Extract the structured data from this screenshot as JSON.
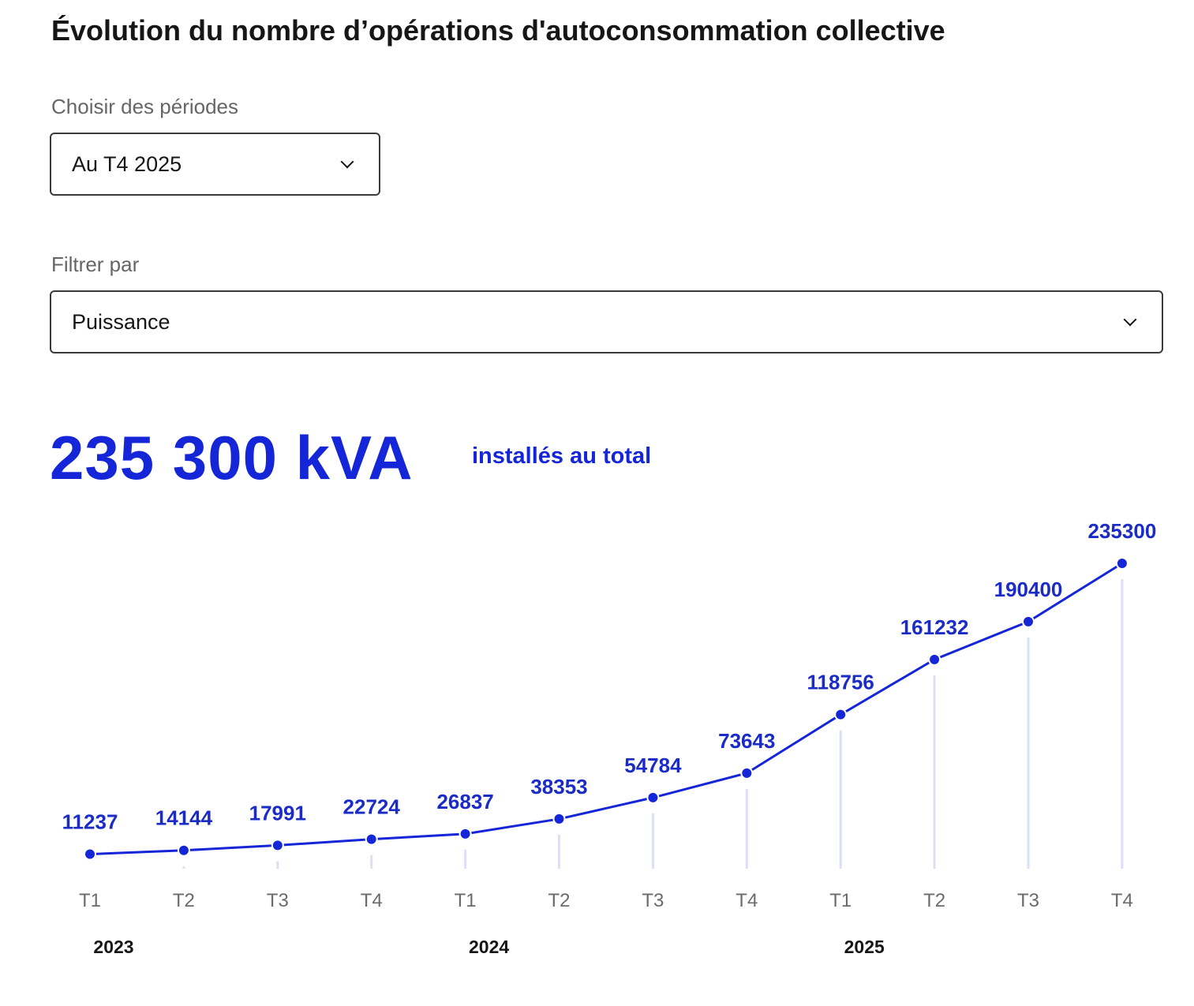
{
  "title": "Évolution du nombre d’opérations d'autoconsommation collective",
  "period": {
    "label": "Choisir des périodes",
    "value": "Au T4 2025"
  },
  "filter": {
    "label": "Filtrer par",
    "value": "Puissance"
  },
  "total": {
    "value": "235 300 kVA",
    "caption": "installés au total"
  },
  "colors": {
    "accent": "#1526d8",
    "grid": "#dcdff8"
  },
  "chart_data": {
    "type": "line",
    "categories": [
      "T1",
      "T2",
      "T3",
      "T4",
      "T1",
      "T2",
      "T3",
      "T4",
      "T1",
      "T2",
      "T3",
      "T4"
    ],
    "years": [
      {
        "label": "2023",
        "start": 0
      },
      {
        "label": "2024",
        "start": 4
      },
      {
        "label": "2025",
        "start": 8
      }
    ],
    "series": [
      {
        "name": "Puissance (kVA)",
        "values": [
          11237,
          14144,
          17991,
          22724,
          26837,
          38353,
          54784,
          73643,
          118756,
          161232,
          190400,
          235300
        ]
      }
    ],
    "ylim": [
      0,
      235300
    ]
  }
}
